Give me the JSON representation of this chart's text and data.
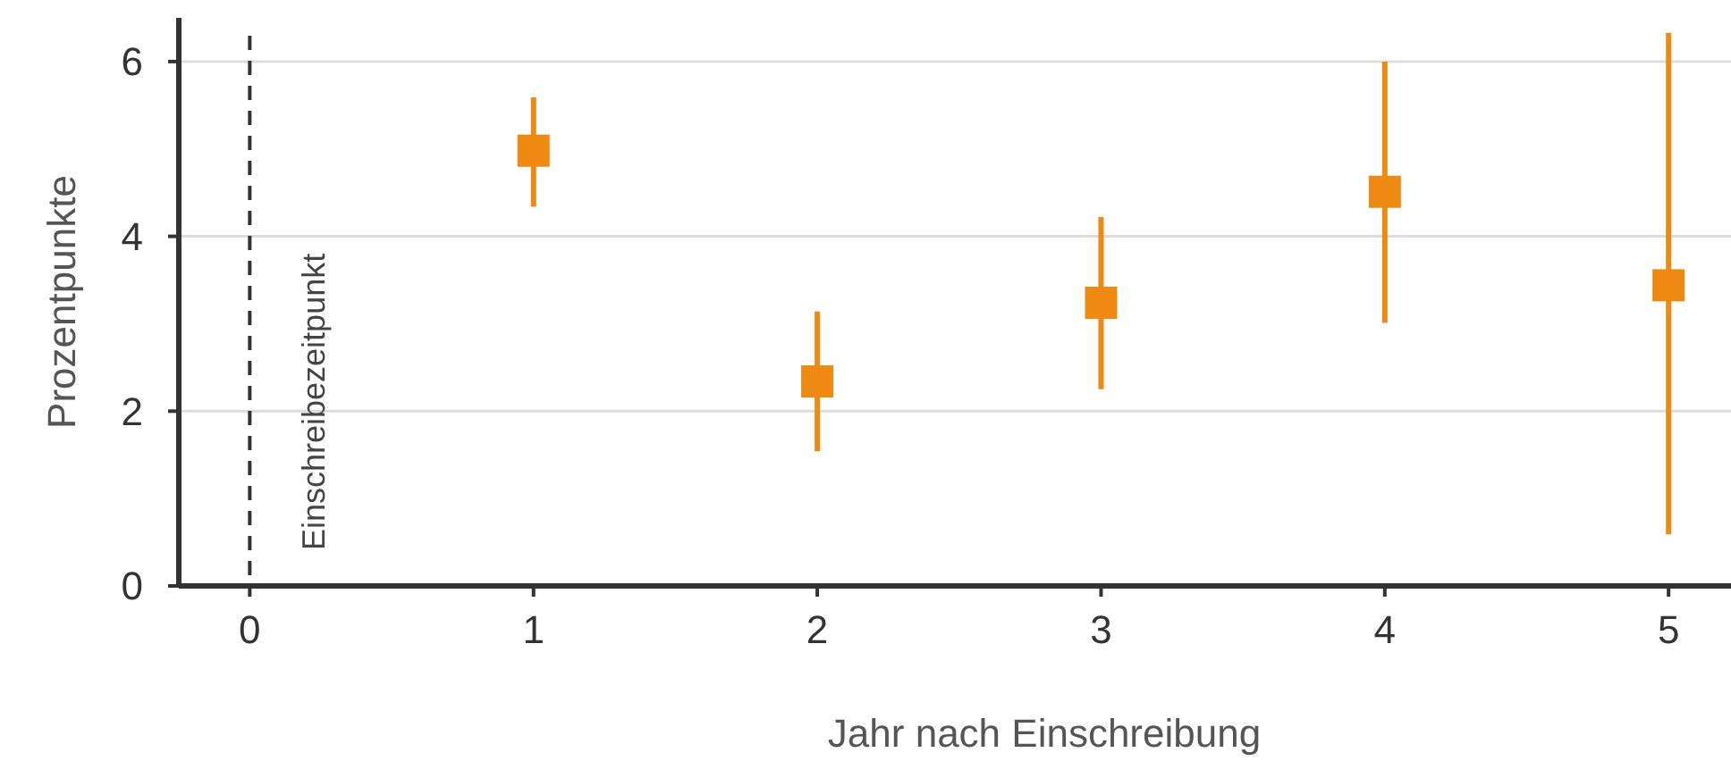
{
  "chart_data": {
    "type": "scatter",
    "xlabel": "Jahr nach Einschreibung",
    "ylabel": "Prozentpunkte",
    "x": [
      1,
      2,
      3,
      4,
      5
    ],
    "series": [
      {
        "color": "#ee8a12",
        "values": [
          4.98,
          2.34,
          3.24,
          4.51,
          3.44
        ],
        "errors": [
          [
            4.34,
            5.59
          ],
          [
            1.54,
            3.14
          ],
          [
            2.25,
            4.22
          ],
          [
            3.01,
            6.0
          ],
          [
            0.59,
            6.33
          ]
        ]
      }
    ],
    "xlim": [
      -0.25,
      5.22
    ],
    "xticks": [
      0,
      1,
      2,
      3,
      4,
      5
    ],
    "ylim": [
      0,
      6.5
    ],
    "yticks": [
      0,
      2,
      4,
      6
    ],
    "grid": "y",
    "marker": "square",
    "ref_lines": [
      {
        "axis": "x",
        "value": 0,
        "label": "Einschreibezeitpunkt",
        "color": "#333333",
        "line_style": "dashed"
      }
    ]
  }
}
